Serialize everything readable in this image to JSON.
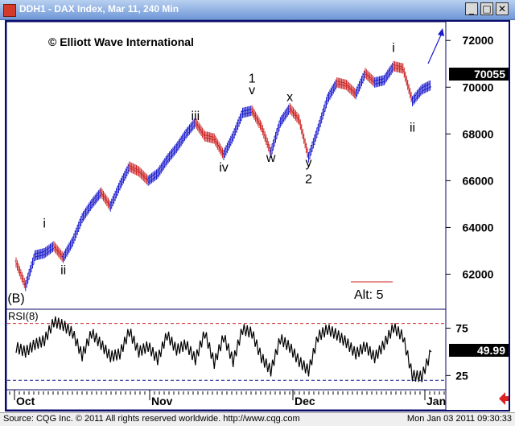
{
  "window": {
    "title": "DDH1 - DAX Index, Mar 11, 240 Min",
    "minimize_glyph": "_",
    "maximize_glyph": "□",
    "close_glyph": "✕"
  },
  "footer": {
    "source": "Source: CQG Inc. © 2011 All rights reserved worldwide. http://www.cqg.com",
    "timestamp": "Mon Jan 03 2011 09:30:33"
  },
  "colors": {
    "up_bar": "#1a1acc",
    "down_bar": "#cc2222",
    "axis_frame": "#0a0a6a",
    "rsi_line": "#000000",
    "rsi_level": "#cc2222",
    "rsi_low_level": "#1a1a8a",
    "title_bar": "#6f97d8"
  },
  "chart_data": [
    {
      "type": "ohlc",
      "copyright": "© Elliott Wave International",
      "y_ticks": [
        62000,
        64000,
        66000,
        68000,
        70000,
        72000
      ],
      "y_tick_labels": [
        "62000",
        "64000",
        "66000",
        "68000",
        "70000",
        "72000"
      ],
      "ylim": [
        60500,
        72800
      ],
      "last_price": 70055,
      "last_price_label": "70055",
      "x_labels": [
        "Oct",
        "Nov",
        "Dec",
        "Jan"
      ],
      "alt_label": "Alt: 5",
      "series": [
        {
          "x": 0,
          "y": 62500
        },
        {
          "x": 3,
          "y": 61500
        },
        {
          "x": 6,
          "y": 62800
        },
        {
          "x": 9,
          "y": 62900
        },
        {
          "x": 12,
          "y": 63200
        },
        {
          "x": 15,
          "y": 62700
        },
        {
          "x": 18,
          "y": 63400
        },
        {
          "x": 21,
          "y": 64400
        },
        {
          "x": 24,
          "y": 65000
        },
        {
          "x": 27,
          "y": 65500
        },
        {
          "x": 30,
          "y": 64900
        },
        {
          "x": 33,
          "y": 65800
        },
        {
          "x": 36,
          "y": 66600
        },
        {
          "x": 39,
          "y": 66400
        },
        {
          "x": 42,
          "y": 66000
        },
        {
          "x": 45,
          "y": 66300
        },
        {
          "x": 48,
          "y": 66900
        },
        {
          "x": 51,
          "y": 67400
        },
        {
          "x": 54,
          "y": 68000
        },
        {
          "x": 57,
          "y": 68500
        },
        {
          "x": 60,
          "y": 67900
        },
        {
          "x": 63,
          "y": 67800
        },
        {
          "x": 66,
          "y": 67100
        },
        {
          "x": 69,
          "y": 67900
        },
        {
          "x": 72,
          "y": 68900
        },
        {
          "x": 75,
          "y": 69000
        },
        {
          "x": 78,
          "y": 68300
        },
        {
          "x": 81,
          "y": 67200
        },
        {
          "x": 84,
          "y": 68500
        },
        {
          "x": 87,
          "y": 69100
        },
        {
          "x": 90,
          "y": 68600
        },
        {
          "x": 93,
          "y": 67000
        },
        {
          "x": 96,
          "y": 68200
        },
        {
          "x": 99,
          "y": 69500
        },
        {
          "x": 102,
          "y": 70200
        },
        {
          "x": 105,
          "y": 70100
        },
        {
          "x": 108,
          "y": 69700
        },
        {
          "x": 111,
          "y": 70600
        },
        {
          "x": 114,
          "y": 70200
        },
        {
          "x": 117,
          "y": 70300
        },
        {
          "x": 120,
          "y": 70900
        },
        {
          "x": 123,
          "y": 70800
        },
        {
          "x": 126,
          "y": 69400
        },
        {
          "x": 129,
          "y": 69900
        },
        {
          "x": 132,
          "y": 70100
        }
      ],
      "annotations": [
        {
          "text": "(B)",
          "x": 0,
          "y": 60800
        },
        {
          "text": "i",
          "x": 9,
          "y": 64000
        },
        {
          "text": "ii",
          "x": 15,
          "y": 62000
        },
        {
          "text": "iii",
          "x": 57,
          "y": 68600
        },
        {
          "text": "iv",
          "x": 66,
          "y": 66400
        },
        {
          "text": "1",
          "x": 75,
          "y": 70200
        },
        {
          "text": "v",
          "x": 75,
          "y": 69700
        },
        {
          "text": "w",
          "x": 81,
          "y": 66800
        },
        {
          "text": "x",
          "x": 87,
          "y": 69400
        },
        {
          "text": "y",
          "x": 93,
          "y": 66600
        },
        {
          "text": "2",
          "x": 93,
          "y": 65900
        },
        {
          "text": "i",
          "x": 120,
          "y": 71500
        },
        {
          "text": "ii",
          "x": 126,
          "y": 68100
        }
      ]
    },
    {
      "type": "line",
      "title": "RSI(8)",
      "y_ticks": [
        25,
        75
      ],
      "y_tick_labels": [
        "25",
        "75"
      ],
      "levels": [
        80,
        20
      ],
      "last_value": 49.99,
      "last_value_label": "49.99",
      "ylim": [
        10,
        95
      ],
      "values": [
        {
          "x": 0,
          "y": 55
        },
        {
          "x": 3,
          "y": 50
        },
        {
          "x": 6,
          "y": 58
        },
        {
          "x": 9,
          "y": 62
        },
        {
          "x": 12,
          "y": 82
        },
        {
          "x": 15,
          "y": 78
        },
        {
          "x": 18,
          "y": 70
        },
        {
          "x": 21,
          "y": 46
        },
        {
          "x": 24,
          "y": 70
        },
        {
          "x": 27,
          "y": 58
        },
        {
          "x": 30,
          "y": 45
        },
        {
          "x": 33,
          "y": 48
        },
        {
          "x": 36,
          "y": 72
        },
        {
          "x": 39,
          "y": 50
        },
        {
          "x": 42,
          "y": 56
        },
        {
          "x": 45,
          "y": 42
        },
        {
          "x": 48,
          "y": 68
        },
        {
          "x": 51,
          "y": 52
        },
        {
          "x": 54,
          "y": 58
        },
        {
          "x": 57,
          "y": 42
        },
        {
          "x": 60,
          "y": 70
        },
        {
          "x": 63,
          "y": 38
        },
        {
          "x": 66,
          "y": 66
        },
        {
          "x": 69,
          "y": 40
        },
        {
          "x": 72,
          "y": 74
        },
        {
          "x": 75,
          "y": 70
        },
        {
          "x": 78,
          "y": 44
        },
        {
          "x": 81,
          "y": 30
        },
        {
          "x": 84,
          "y": 64
        },
        {
          "x": 87,
          "y": 55
        },
        {
          "x": 90,
          "y": 40
        },
        {
          "x": 93,
          "y": 30
        },
        {
          "x": 96,
          "y": 66
        },
        {
          "x": 99,
          "y": 74
        },
        {
          "x": 102,
          "y": 68
        },
        {
          "x": 105,
          "y": 60
        },
        {
          "x": 108,
          "y": 48
        },
        {
          "x": 111,
          "y": 56
        },
        {
          "x": 114,
          "y": 44
        },
        {
          "x": 117,
          "y": 58
        },
        {
          "x": 120,
          "y": 76
        },
        {
          "x": 123,
          "y": 66
        },
        {
          "x": 126,
          "y": 25
        },
        {
          "x": 129,
          "y": 24
        },
        {
          "x": 132,
          "y": 50
        }
      ]
    }
  ]
}
